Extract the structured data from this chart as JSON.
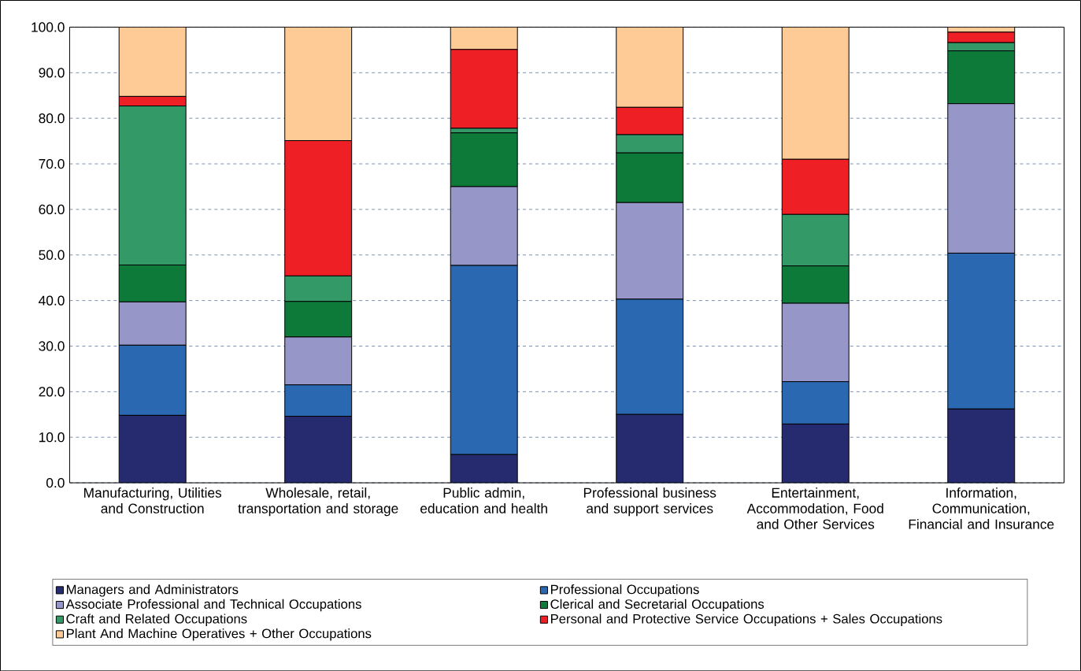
{
  "chart_data": {
    "type": "bar",
    "stacked": true,
    "categories": [
      "Manufacturing, Utilities and Construction",
      "Wholesale, retail, transportation and storage",
      "Public admin, education and health",
      "Professional business and support services",
      "Entertainment, Accommodation, Food and Other Services",
      "Information, Communication, Financial and Insurance"
    ],
    "series": [
      {
        "name": "Managers and Administrators",
        "color": "#262a6e",
        "values": [
          14.8,
          14.6,
          6.2,
          15.0,
          12.9,
          16.2
        ]
      },
      {
        "name": "Professional Occupations",
        "color": "#2a68b1",
        "values": [
          15.4,
          6.9,
          41.5,
          25.3,
          9.3,
          34.2
        ]
      },
      {
        "name": "Associate Professional and Technical Occupations",
        "color": "#9696c8",
        "values": [
          9.5,
          10.5,
          17.3,
          21.2,
          17.2,
          32.8
        ]
      },
      {
        "name": "Clerical and Secretarial Occupations",
        "color": "#0e7a3a",
        "values": [
          8.1,
          7.8,
          11.8,
          10.9,
          8.2,
          11.6
        ]
      },
      {
        "name": "Craft and Related Occupations",
        "color": "#339966",
        "values": [
          34.9,
          5.6,
          1.0,
          4.0,
          11.3,
          1.8
        ]
      },
      {
        "name": "Personal and Protective Service Occupations + Sales Occupations",
        "color": "#ee2026",
        "values": [
          2.1,
          29.7,
          17.3,
          6.0,
          12.1,
          2.3
        ]
      },
      {
        "name": "Plant And Machine Operatives + Other Occupations",
        "color": "#fecb96",
        "values": [
          15.2,
          24.9,
          4.9,
          17.6,
          29.0,
          1.1
        ]
      }
    ],
    "ylim": [
      0,
      100
    ],
    "yticks": [
      {
        "value": 0,
        "label": "0.0"
      },
      {
        "value": 10,
        "label": "10.0"
      },
      {
        "value": 20,
        "label": "20.0"
      },
      {
        "value": 30,
        "label": "30.0"
      },
      {
        "value": 40,
        "label": "40.0"
      },
      {
        "value": 50,
        "label": "50.0"
      },
      {
        "value": 60,
        "label": "60.0"
      },
      {
        "value": 70,
        "label": "70.0"
      },
      {
        "value": 80,
        "label": "80.0"
      },
      {
        "value": 90,
        "label": "90.0"
      },
      {
        "value": 100,
        "label": "100.0"
      }
    ],
    "grid": "y",
    "legend": "bottom"
  }
}
